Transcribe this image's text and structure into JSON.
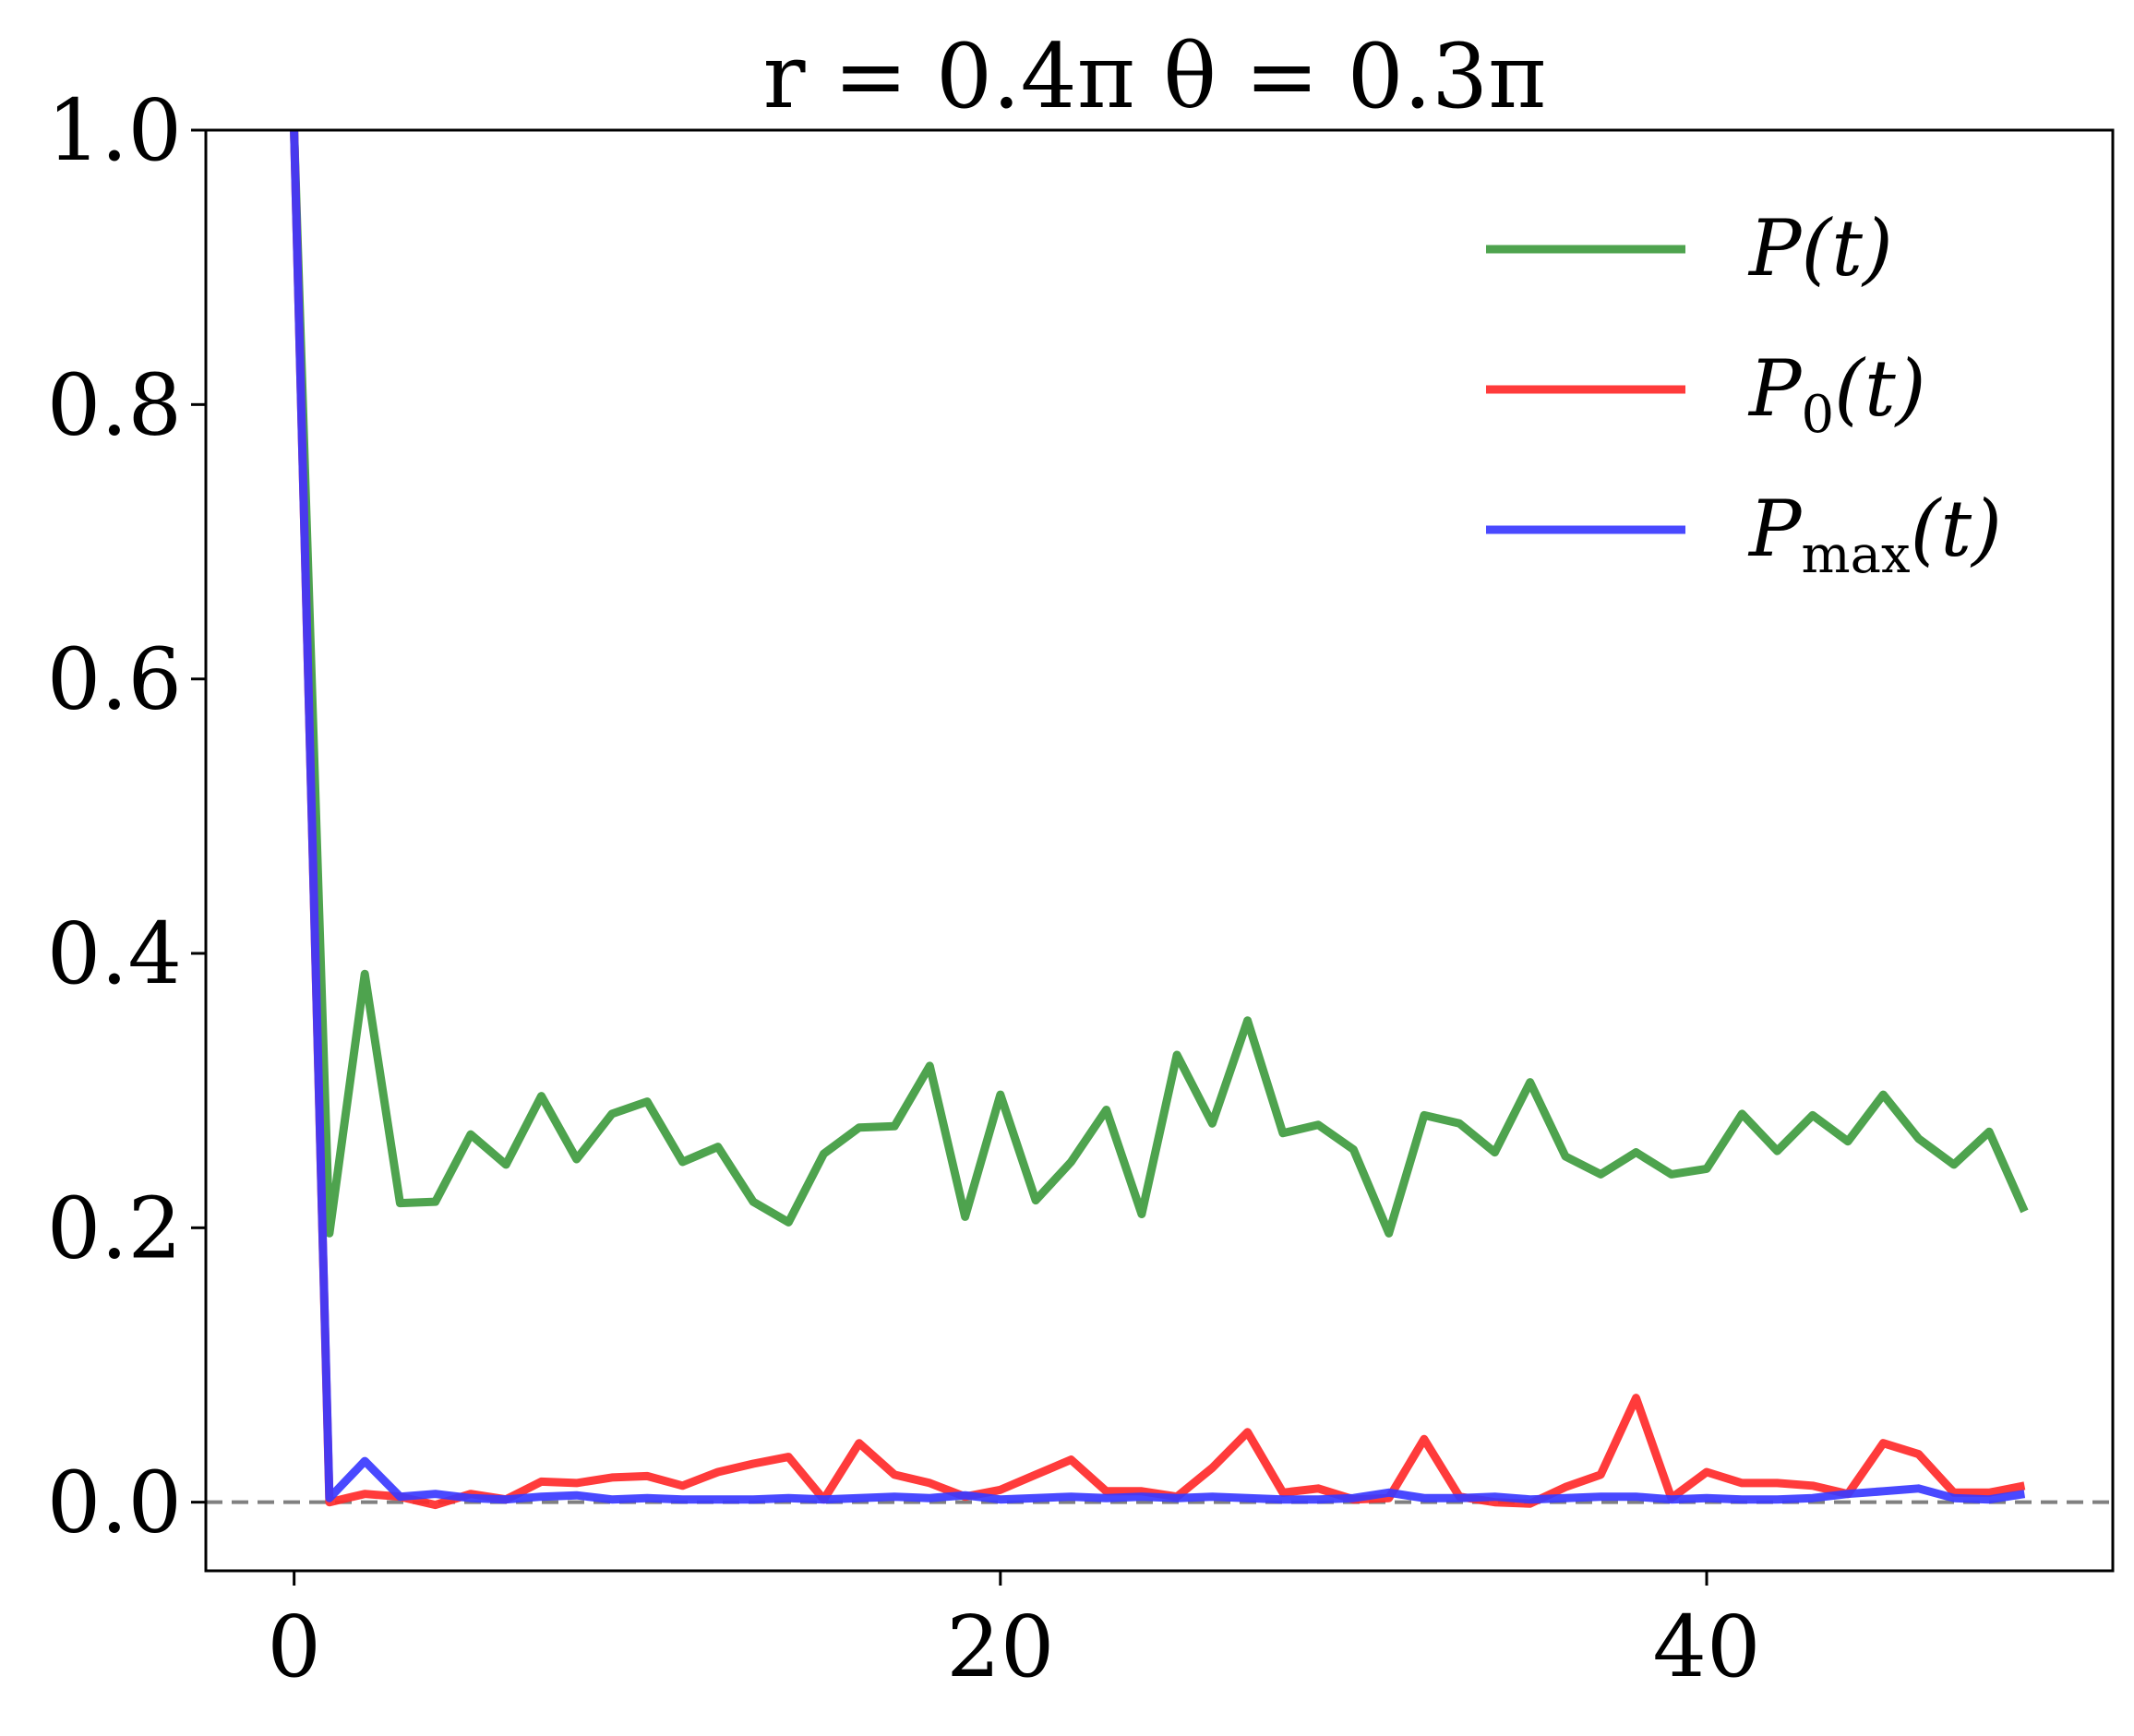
{
  "chart_data": {
    "type": "line",
    "title": "r = 0.4π  θ = 0.3π",
    "xlabel": "",
    "ylabel": "",
    "xlim": [
      -2.5,
      51.5
    ],
    "ylim": [
      -0.05,
      1.0
    ],
    "xticks": [
      0,
      20,
      40
    ],
    "xtick_labels": [
      "0",
      "20",
      "40"
    ],
    "yticks": [
      0.0,
      0.2,
      0.4,
      0.6,
      0.8,
      1.0
    ],
    "ytick_labels": [
      "0.0",
      "0.2",
      "0.4",
      "0.6",
      "0.8",
      "1.0"
    ],
    "grid": false,
    "legend_position": "top-right",
    "reference_line": {
      "y": 0.0,
      "style": "dashed",
      "color": "#808080"
    },
    "series": [
      {
        "name": "P(t)",
        "legend_main": "P",
        "legend_sub": "",
        "legend_suffix": "(t)",
        "color": "#3f9b3f",
        "x": [
          0,
          1,
          2,
          3,
          4,
          5,
          6,
          7,
          8,
          9,
          10,
          11,
          12,
          13,
          14,
          15,
          16,
          17,
          18,
          19,
          20,
          21,
          22,
          23,
          24,
          25,
          26,
          27,
          28,
          29,
          30,
          31,
          32,
          33,
          34,
          35,
          36,
          37,
          38,
          39,
          40,
          41,
          42,
          43,
          44,
          45,
          46,
          47,
          48,
          49
        ],
        "values": [
          1.0,
          0.196,
          0.385,
          0.218,
          0.219,
          0.268,
          0.246,
          0.296,
          0.25,
          0.283,
          0.292,
          0.248,
          0.259,
          0.219,
          0.204,
          0.254,
          0.273,
          0.274,
          0.318,
          0.208,
          0.297,
          0.22,
          0.248,
          0.286,
          0.21,
          0.326,
          0.276,
          0.351,
          0.269,
          0.275,
          0.257,
          0.196,
          0.282,
          0.276,
          0.255,
          0.306,
          0.252,
          0.239,
          0.255,
          0.239,
          0.243,
          0.283,
          0.256,
          0.282,
          0.263,
          0.297,
          0.265,
          0.246,
          0.27,
          0.212
        ]
      },
      {
        "name": "P₀(t)",
        "legend_main": "P",
        "legend_sub": "0",
        "legend_suffix": "(t)",
        "color": "#ff2a2a",
        "x": [
          0,
          1,
          2,
          3,
          4,
          5,
          6,
          7,
          8,
          9,
          10,
          11,
          12,
          13,
          14,
          15,
          16,
          17,
          18,
          19,
          20,
          21,
          22,
          23,
          24,
          25,
          26,
          27,
          28,
          29,
          30,
          31,
          32,
          33,
          34,
          35,
          36,
          37,
          38,
          39,
          40,
          41,
          42,
          43,
          44,
          45,
          46,
          47,
          48,
          49
        ],
        "values": [
          1.0,
          0.0,
          0.006,
          0.004,
          -0.002,
          0.006,
          0.002,
          0.015,
          0.014,
          0.018,
          0.019,
          0.012,
          0.022,
          0.028,
          0.033,
          0.002,
          0.043,
          0.02,
          0.014,
          0.004,
          0.009,
          0.02,
          0.031,
          0.008,
          0.008,
          0.004,
          0.025,
          0.051,
          0.007,
          0.01,
          0.002,
          0.003,
          0.046,
          0.004,
          0.0,
          -0.001,
          0.011,
          0.02,
          0.076,
          0.003,
          0.022,
          0.014,
          0.014,
          0.012,
          0.006,
          0.043,
          0.035,
          0.007,
          0.007,
          0.012
        ]
      },
      {
        "name": "Pmax(t)",
        "legend_main": "P",
        "legend_sub": "max",
        "legend_suffix": "(t)",
        "color": "#3a3aff",
        "x": [
          0,
          1,
          2,
          3,
          4,
          5,
          6,
          7,
          8,
          9,
          10,
          11,
          12,
          13,
          14,
          15,
          16,
          17,
          18,
          19,
          20,
          21,
          22,
          23,
          24,
          25,
          26,
          27,
          28,
          29,
          30,
          31,
          32,
          33,
          34,
          35,
          36,
          37,
          38,
          39,
          40,
          41,
          42,
          43,
          44,
          45,
          46,
          47,
          48,
          49
        ],
        "values": [
          1.0,
          0.003,
          0.03,
          0.004,
          0.006,
          0.003,
          0.002,
          0.004,
          0.005,
          0.002,
          0.003,
          0.002,
          0.002,
          0.002,
          0.003,
          0.002,
          0.003,
          0.004,
          0.003,
          0.005,
          0.002,
          0.003,
          0.004,
          0.003,
          0.004,
          0.003,
          0.004,
          0.003,
          0.002,
          0.002,
          0.003,
          0.007,
          0.003,
          0.003,
          0.004,
          0.002,
          0.003,
          0.004,
          0.004,
          0.002,
          0.003,
          0.002,
          0.002,
          0.003,
          0.006,
          0.008,
          0.01,
          0.003,
          0.002,
          0.006
        ]
      }
    ]
  }
}
